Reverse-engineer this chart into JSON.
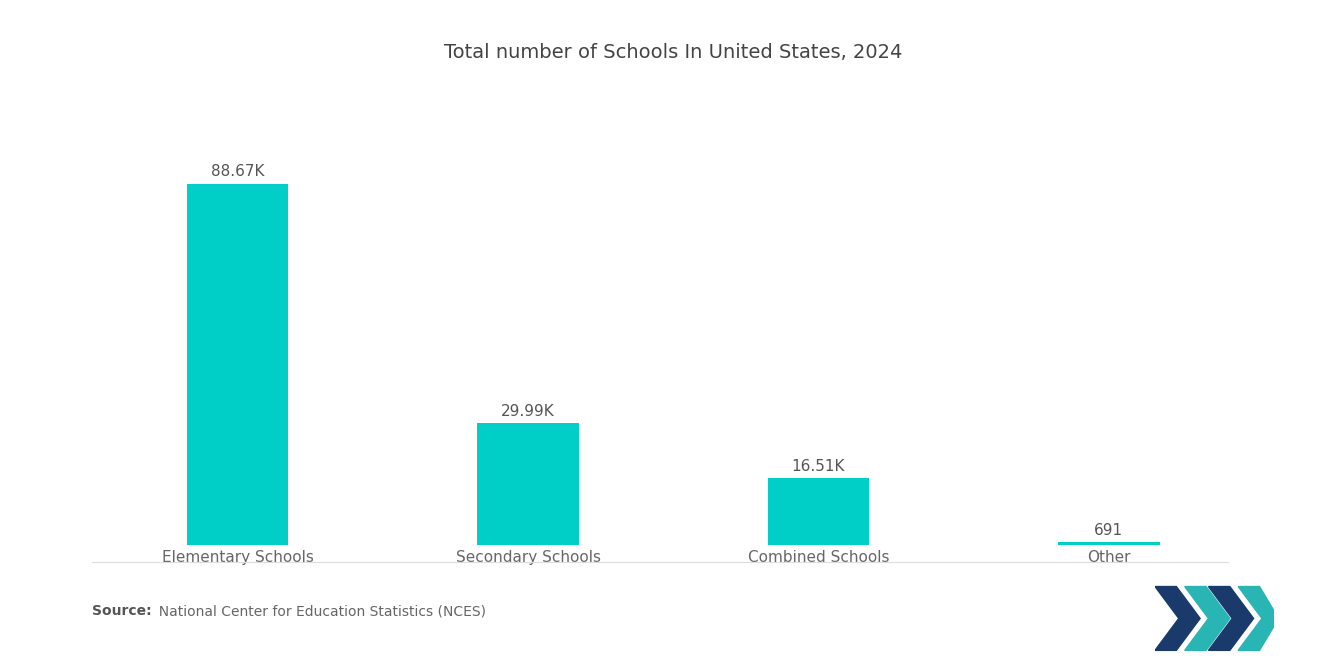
{
  "title": "Total number of Schools In United States, 2024",
  "categories": [
    "Elementary Schools",
    "Secondary Schools",
    "Combined Schools",
    "Other"
  ],
  "values": [
    88670,
    29990,
    16510,
    691
  ],
  "labels": [
    "88.67K",
    "29.99K",
    "16.51K",
    "691"
  ],
  "bar_color": "#00CFC8",
  "background_color": "#ffffff",
  "title_fontsize": 14,
  "label_fontsize": 11,
  "tick_fontsize": 11,
  "source_bold": "Source:",
  "source_rest": "  National Center for Education Statistics (NCES)",
  "logo_dark": "#1a3a6b",
  "logo_teal": "#2ab5b5"
}
